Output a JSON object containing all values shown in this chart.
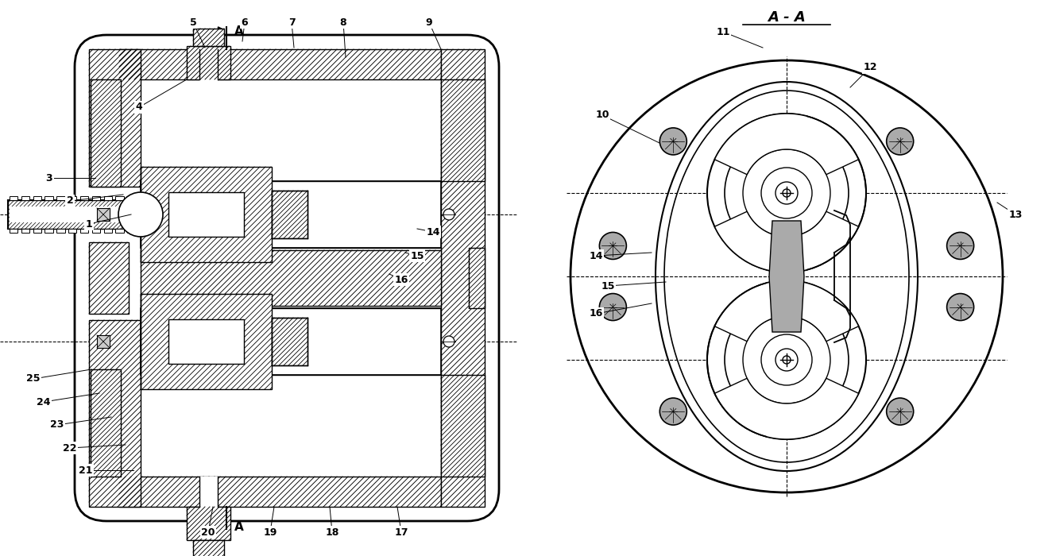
{
  "bg_color": "#ffffff",
  "title_aa": "А - А",
  "fig_width": 13.24,
  "fig_height": 7.0,
  "dpi": 100,
  "left_labels": [
    [
      "1",
      112,
      418
    ],
    [
      "2",
      88,
      447
    ],
    [
      "3",
      62,
      476
    ],
    [
      "4",
      175,
      565
    ],
    [
      "5",
      243,
      672
    ],
    [
      "6",
      308,
      672
    ],
    [
      "7",
      367,
      672
    ],
    [
      "8",
      432,
      672
    ],
    [
      "9",
      540,
      672
    ],
    [
      "21",
      108,
      108
    ],
    [
      "22",
      88,
      136
    ],
    [
      "23",
      72,
      165
    ],
    [
      "24",
      55,
      194
    ],
    [
      "25",
      42,
      223
    ],
    [
      "16",
      505,
      348
    ],
    [
      "15",
      525,
      378
    ],
    [
      "14",
      545,
      408
    ],
    [
      "20",
      262,
      30
    ],
    [
      "19",
      340,
      30
    ],
    [
      "18",
      418,
      30
    ],
    [
      "17",
      505,
      30
    ]
  ],
  "right_labels": [
    [
      "10",
      758,
      555
    ],
    [
      "11",
      910,
      660
    ],
    [
      "12",
      1095,
      615
    ],
    [
      "13",
      1278,
      430
    ],
    [
      "14",
      750,
      378
    ],
    [
      "15",
      765,
      340
    ],
    [
      "16",
      750,
      305
    ]
  ]
}
